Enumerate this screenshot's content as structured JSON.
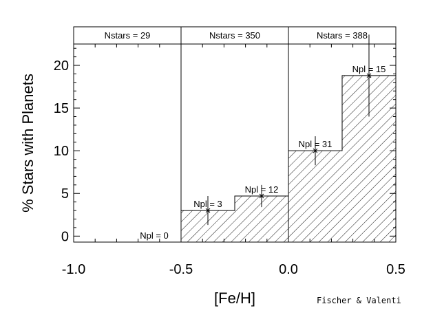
{
  "chart_data": {
    "type": "bar",
    "xlabel": "[Fe/H]",
    "ylabel": "% Stars with Planets",
    "xlim": [
      -1.0,
      0.5
    ],
    "ylim": [
      -0.7,
      22.5
    ],
    "xticks": [
      -1.0,
      -0.5,
      0.0,
      0.5
    ],
    "xtick_labels": [
      "-1.0",
      "-0.5",
      "0.0",
      "0.5"
    ],
    "yticks": [
      0,
      5,
      10,
      15,
      20
    ],
    "ytick_labels": [
      "0",
      "5",
      "10",
      "15",
      "20"
    ],
    "fill": "hatched",
    "grid": false,
    "bins": [
      {
        "x0": -1.0,
        "x1": -0.75,
        "value": 0,
        "error": 0,
        "label": ""
      },
      {
        "x0": -0.75,
        "x1": -0.5,
        "value": 0,
        "error": 0,
        "label": "Npl = 0"
      },
      {
        "x0": -0.5,
        "x1": -0.25,
        "value": 3.0,
        "error": 1.7,
        "label": "Npl = 3"
      },
      {
        "x0": -0.25,
        "x1": 0.0,
        "value": 4.7,
        "error": 1.3,
        "label": "Npl = 12"
      },
      {
        "x0": 0.0,
        "x1": 0.25,
        "value": 10.0,
        "error": 1.7,
        "label": "Npl = 31"
      },
      {
        "x0": 0.25,
        "x1": 0.5,
        "value": 18.8,
        "error": 4.8,
        "label": "Npl = 15"
      }
    ],
    "panels": [
      {
        "x0": -1.0,
        "x1": -0.5,
        "label": "Nstars = 29"
      },
      {
        "x0": -0.5,
        "x1": 0.0,
        "label": "Nstars = 350"
      },
      {
        "x0": 0.0,
        "x1": 0.5,
        "label": "Nstars = 388"
      }
    ]
  },
  "credit": "Fischer & Valenti"
}
